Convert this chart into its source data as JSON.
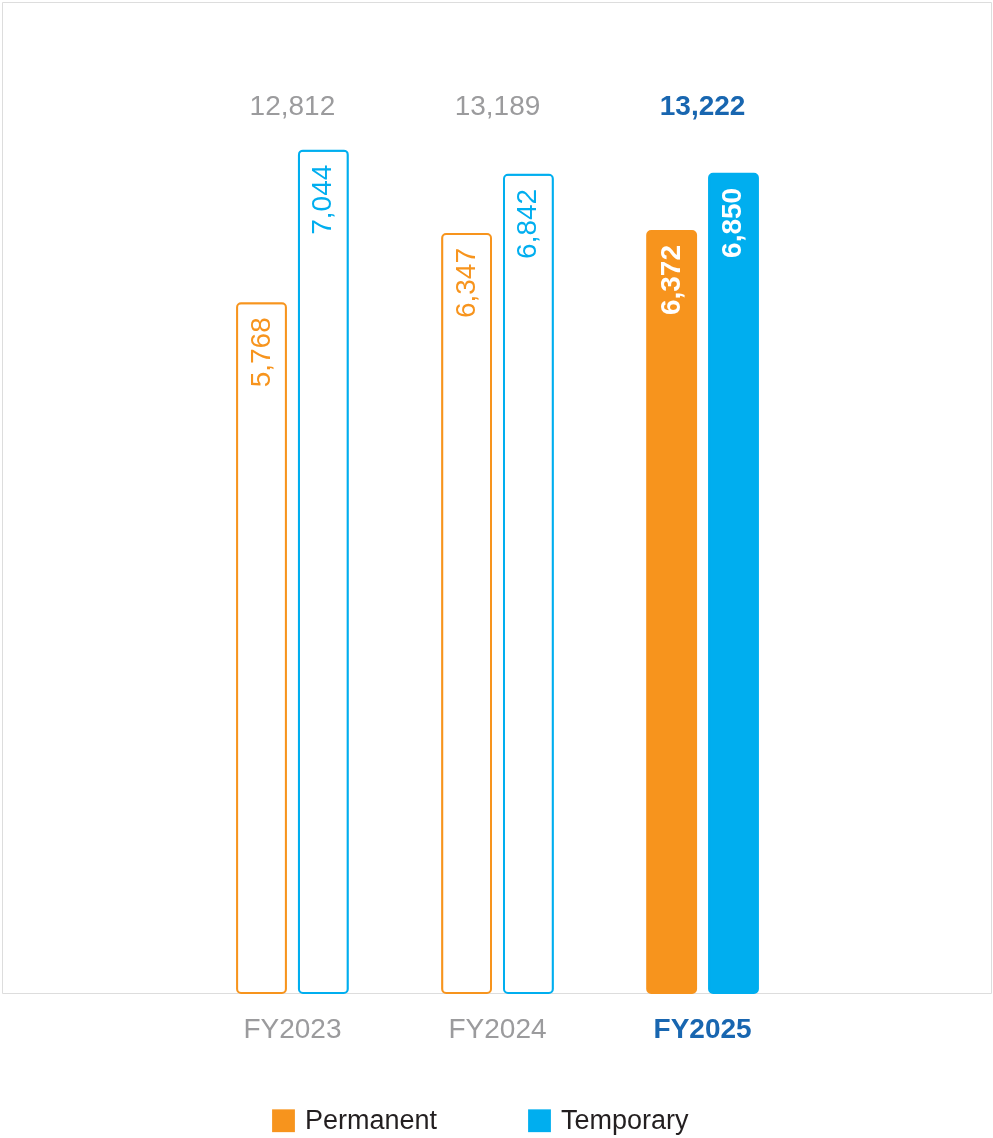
{
  "chart_data": {
    "type": "bar",
    "categories": [
      "FY2023",
      "FY2024",
      "FY2025"
    ],
    "series": [
      {
        "name": "Permanent",
        "color": "#f7941d",
        "values": [
          5768,
          6347,
          6372
        ],
        "value_labels": [
          "5,768",
          "6,347",
          "6,372"
        ]
      },
      {
        "name": "Temporary",
        "color": "#00aeef",
        "values": [
          7044,
          6842,
          6850
        ],
        "value_labels": [
          "7,044",
          "6,842",
          "6,850"
        ]
      }
    ],
    "totals": [
      "12,812",
      "13,189",
      "13,222"
    ],
    "legend": "bottom"
  }
}
